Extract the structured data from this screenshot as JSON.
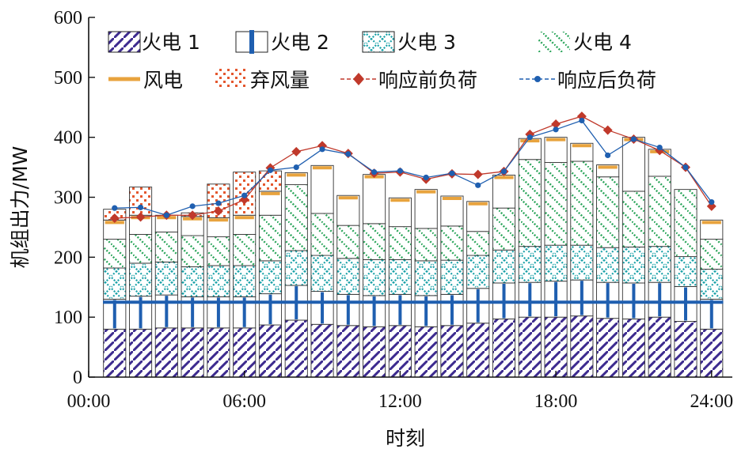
{
  "chart_data": {
    "type": "bar",
    "subtype": "stacked bar with overlaid lines",
    "xlabel": "时刻",
    "ylabel": "机组出力/MW",
    "ylim": [
      0,
      600
    ],
    "yticks": [
      0,
      100,
      200,
      300,
      400,
      500,
      600
    ],
    "xlim": [
      0,
      24.8
    ],
    "xticks": [
      0,
      6,
      12,
      18,
      24
    ],
    "xtick_labels": [
      "00:00",
      "06:00",
      "12:00",
      "18:00",
      "24:00"
    ],
    "grid": false,
    "legend_position": "top",
    "hours": [
      1,
      2,
      3,
      4,
      5,
      6,
      7,
      8,
      9,
      10,
      11,
      12,
      13,
      14,
      15,
      16,
      17,
      18,
      19,
      20,
      21,
      22,
      23,
      24
    ],
    "series": [
      {
        "name": "火电 1",
        "pattern": "diagonal-purple",
        "color": "#3d2b8f",
        "values": [
          80,
          80,
          82,
          82,
          82,
          82,
          87,
          95,
          88,
          86,
          84,
          86,
          84,
          86,
          90,
          97,
          100,
          100,
          102,
          98,
          97,
          100,
          93,
          80
        ]
      },
      {
        "name": "火电 2",
        "pattern": "vertical-blue",
        "color": "#1f5fb0",
        "values": [
          50,
          55,
          55,
          52,
          52,
          52,
          52,
          58,
          55,
          52,
          52,
          52,
          52,
          52,
          58,
          60,
          58,
          60,
          60,
          60,
          60,
          58,
          58,
          50
        ]
      },
      {
        "name": "火电 3",
        "pattern": "cross-teal",
        "color": "#1aa1a8",
        "values": [
          52,
          55,
          55,
          50,
          52,
          52,
          55,
          58,
          60,
          60,
          60,
          58,
          58,
          57,
          55,
          55,
          60,
          60,
          58,
          58,
          60,
          60,
          50,
          50
        ]
      },
      {
        "name": "火电 4",
        "pattern": "diagonal-green",
        "color": "#2aa55a",
        "values": [
          48,
          48,
          50,
          52,
          48,
          52,
          76,
          110,
          70,
          55,
          60,
          55,
          54,
          57,
          40,
          70,
          145,
          138,
          140,
          118,
          93,
          117,
          112,
          50
        ]
      },
      {
        "name": "风电",
        "color": "#e8a33d",
        "values": [
          32,
          32,
          28,
          32,
          32,
          32,
          40,
          20,
          80,
          50,
          82,
          48,
          65,
          50,
          50,
          55,
          35,
          42,
          30,
          20,
          90,
          45,
          0,
          32
        ]
      },
      {
        "name": "弃风量",
        "color": "#e4572e",
        "values": [
          18,
          47,
          0,
          6,
          56,
          72,
          34,
          0,
          0,
          0,
          0,
          0,
          0,
          0,
          0,
          0,
          0,
          0,
          0,
          0,
          0,
          0,
          0,
          0
        ]
      }
    ],
    "lines": [
      {
        "name": "响应前负荷",
        "color": "#c0392b",
        "marker": "diamond",
        "values": [
          265,
          267,
          270,
          270,
          277,
          296,
          349,
          376,
          386,
          373,
          340,
          342,
          330,
          339,
          338,
          343,
          405,
          422,
          435,
          412,
          397,
          378,
          350,
          285
        ]
      },
      {
        "name": "响应后负荷",
        "color": "#1f5fb0",
        "marker": "dot",
        "values": [
          282,
          283,
          270,
          285,
          290,
          303,
          345,
          350,
          380,
          372,
          342,
          344,
          333,
          340,
          320,
          343,
          400,
          413,
          428,
          370,
          397,
          383,
          350,
          292
        ]
      }
    ]
  }
}
